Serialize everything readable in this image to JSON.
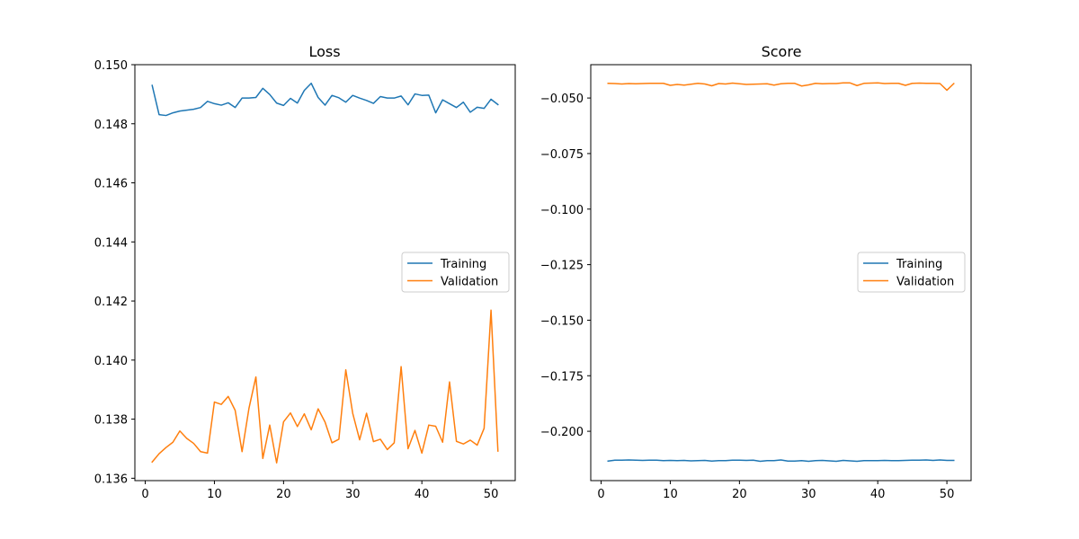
{
  "chart_data": [
    {
      "type": "line",
      "title": "Loss",
      "xlabel": "",
      "ylabel": "",
      "xlim": [
        -1.5,
        53.5
      ],
      "ylim": [
        0.13592,
        0.15
      ],
      "xticks": [
        0,
        10,
        20,
        30,
        40,
        50
      ],
      "yticks": [
        0.136,
        0.138,
        0.14,
        0.142,
        0.144,
        0.146,
        0.148,
        0.15
      ],
      "ytick_labels": [
        "0.136",
        "0.138",
        "0.140",
        "0.142",
        "0.144",
        "0.146",
        "0.148",
        "0.150"
      ],
      "grid": false,
      "legend_position": "center-right",
      "x": [
        1,
        2,
        3,
        4,
        5,
        6,
        7,
        8,
        9,
        10,
        11,
        12,
        13,
        14,
        15,
        16,
        17,
        18,
        19,
        20,
        21,
        22,
        23,
        24,
        25,
        26,
        27,
        28,
        29,
        30,
        31,
        32,
        33,
        34,
        35,
        36,
        37,
        38,
        39,
        40,
        41,
        42,
        43,
        44,
        45,
        46,
        47,
        48,
        49,
        50,
        51
      ],
      "series": [
        {
          "name": "Training",
          "color": "#1f77b4",
          "values": [
            0.1493,
            0.14831,
            0.14828,
            0.14837,
            0.14843,
            0.14846,
            0.14849,
            0.14855,
            0.14876,
            0.14868,
            0.14863,
            0.14871,
            0.14855,
            0.14887,
            0.14887,
            0.14889,
            0.1492,
            0.14899,
            0.1487,
            0.14862,
            0.14886,
            0.1487,
            0.14913,
            0.14937,
            0.14889,
            0.14863,
            0.14896,
            0.14888,
            0.14873,
            0.14896,
            0.14887,
            0.14879,
            0.14869,
            0.14892,
            0.14887,
            0.14887,
            0.14894,
            0.14864,
            0.14901,
            0.14896,
            0.14897,
            0.14837,
            0.14881,
            0.14868,
            0.14855,
            0.14873,
            0.14839,
            0.14856,
            0.14852,
            0.14883,
            0.14865
          ]
        },
        {
          "name": "Validation",
          "color": "#ff7f0e",
          "values": [
            0.13655,
            0.13683,
            0.13704,
            0.13722,
            0.1376,
            0.13735,
            0.13718,
            0.1369,
            0.13685,
            0.13858,
            0.1385,
            0.13877,
            0.1383,
            0.1369,
            0.13837,
            0.13943,
            0.13667,
            0.1378,
            0.13652,
            0.13791,
            0.13821,
            0.13775,
            0.13818,
            0.13764,
            0.13835,
            0.1379,
            0.1372,
            0.13732,
            0.13967,
            0.1382,
            0.1373,
            0.1382,
            0.13724,
            0.13732,
            0.13697,
            0.1372,
            0.13978,
            0.137,
            0.13762,
            0.13685,
            0.1378,
            0.13776,
            0.13722,
            0.13926,
            0.13725,
            0.13716,
            0.13729,
            0.13712,
            0.13769,
            0.14169,
            0.13692
          ]
        }
      ]
    },
    {
      "type": "line",
      "title": "Score",
      "xlabel": "",
      "ylabel": "",
      "xlim": [
        -1.5,
        53.5
      ],
      "ylim": [
        -0.2222,
        -0.035
      ],
      "xticks": [
        0,
        10,
        20,
        30,
        40,
        50
      ],
      "yticks": [
        -0.05,
        -0.075,
        -0.1,
        -0.125,
        -0.15,
        -0.175,
        -0.2
      ],
      "ytick_labels": [
        "−0.050",
        "−0.075",
        "−0.100",
        "−0.125",
        "−0.150",
        "−0.175",
        "−0.200"
      ],
      "grid": false,
      "legend_position": "center-right",
      "x": [
        1,
        2,
        3,
        4,
        5,
        6,
        7,
        8,
        9,
        10,
        11,
        12,
        13,
        14,
        15,
        16,
        17,
        18,
        19,
        20,
        21,
        22,
        23,
        24,
        25,
        26,
        27,
        28,
        29,
        30,
        31,
        32,
        33,
        34,
        35,
        36,
        37,
        38,
        39,
        40,
        41,
        42,
        43,
        44,
        45,
        46,
        47,
        48,
        49,
        50,
        51
      ],
      "series": [
        {
          "name": "Training",
          "color": "#1f77b4",
          "values": [
            -0.2134,
            -0.213,
            -0.213,
            -0.2129,
            -0.213,
            -0.2131,
            -0.213,
            -0.213,
            -0.2132,
            -0.2131,
            -0.2132,
            -0.2131,
            -0.2133,
            -0.2132,
            -0.2131,
            -0.2134,
            -0.2132,
            -0.2132,
            -0.213,
            -0.213,
            -0.2131,
            -0.213,
            -0.2135,
            -0.2132,
            -0.2132,
            -0.2129,
            -0.2134,
            -0.2134,
            -0.2132,
            -0.2135,
            -0.2132,
            -0.2131,
            -0.2133,
            -0.2135,
            -0.2131,
            -0.2133,
            -0.2135,
            -0.2132,
            -0.2132,
            -0.2132,
            -0.2131,
            -0.2132,
            -0.2132,
            -0.2131,
            -0.213,
            -0.213,
            -0.2129,
            -0.2131,
            -0.2129,
            -0.2131,
            -0.2131
          ]
        },
        {
          "name": "Validation",
          "color": "#ff7f0e",
          "values": [
            -0.0434,
            -0.0435,
            -0.0437,
            -0.0435,
            -0.0436,
            -0.0435,
            -0.0434,
            -0.0434,
            -0.0434,
            -0.0443,
            -0.0439,
            -0.0442,
            -0.0438,
            -0.0434,
            -0.0437,
            -0.0445,
            -0.0435,
            -0.0437,
            -0.0433,
            -0.0436,
            -0.0439,
            -0.0438,
            -0.0437,
            -0.0436,
            -0.0442,
            -0.0436,
            -0.0434,
            -0.0434,
            -0.0446,
            -0.0441,
            -0.0434,
            -0.0436,
            -0.0435,
            -0.0435,
            -0.0432,
            -0.0432,
            -0.0444,
            -0.0434,
            -0.0433,
            -0.0432,
            -0.0435,
            -0.0434,
            -0.0434,
            -0.0443,
            -0.0434,
            -0.0433,
            -0.0434,
            -0.0434,
            -0.0435,
            -0.0465,
            -0.0435
          ]
        }
      ]
    }
  ]
}
